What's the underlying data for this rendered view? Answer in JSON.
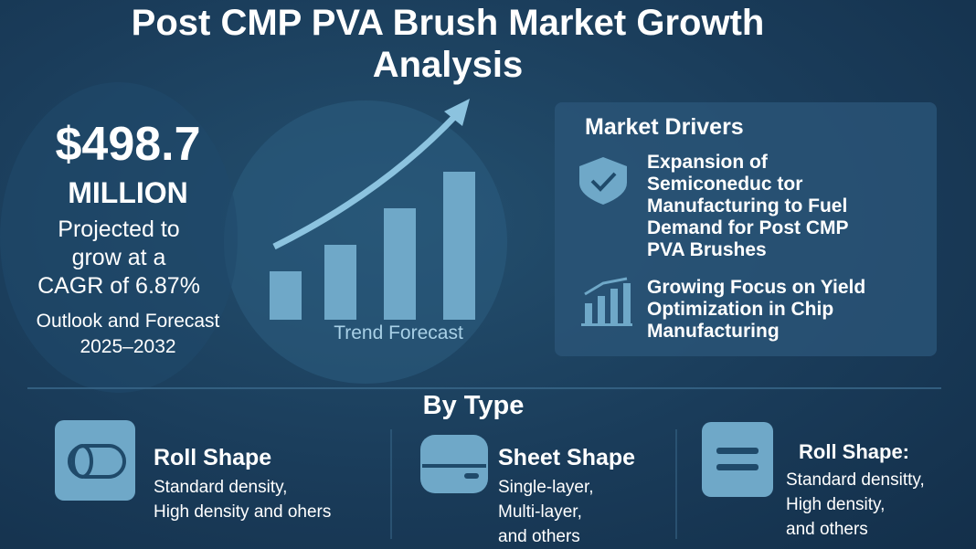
{
  "header": {
    "title": [
      "Post CMP PVA Brush Market Growth",
      "Analysis"
    ]
  },
  "summary": {
    "value": "$498.7",
    "unit": "MILLION",
    "description": [
      "Projected to",
      "grow at a",
      "CAGR of 6.87%"
    ],
    "period": [
      "Outlook and Forecast",
      "2025–2032"
    ]
  },
  "trend": {
    "label": "Trend Forecast"
  },
  "drivers": {
    "title": "Market Drivers",
    "items": [
      {
        "text": [
          "Expansion of",
          "Semiconeduc tor",
          "Manufacturing to Fuel",
          "Demand for Post CMP",
          "PVA Brushes"
        ]
      },
      {
        "text": [
          "Growing Focus on Yield",
          "Optimization in Chip",
          "Manufacturing"
        ]
      }
    ]
  },
  "types": {
    "title": "By Type",
    "items": [
      {
        "name": "Roll Shape",
        "description": [
          "Standard density,",
          "High density and ohers"
        ]
      },
      {
        "name": "Sheet Shape",
        "description": [
          "Single-layer,",
          "Multi-layer,",
          "and others"
        ]
      },
      {
        "name": "Roll Shape:",
        "description": [
          "Standard densitty,",
          "High density,",
          "and others"
        ]
      }
    ]
  }
}
